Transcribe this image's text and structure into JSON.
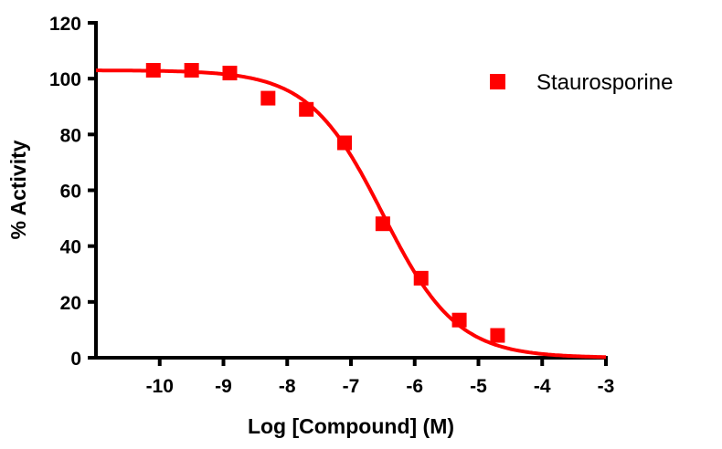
{
  "chart_data": {
    "type": "scatter",
    "title": "",
    "xlabel": "Log [Compound] (M)",
    "ylabel": "% Activity",
    "xlim": [
      -11,
      -3
    ],
    "ylim": [
      0,
      120
    ],
    "xticks": [
      -10,
      -9,
      -8,
      -7,
      -6,
      -5,
      -4,
      -3
    ],
    "yticks": [
      0,
      20,
      40,
      60,
      80,
      100,
      120
    ],
    "grid": false,
    "legend_position": "top-right",
    "series": [
      {
        "name": "Staurosporine",
        "color": "#ff0000",
        "marker": "square",
        "x": [
          -10.1,
          -9.5,
          -8.9,
          -8.3,
          -7.7,
          -7.1,
          -6.5,
          -5.9,
          -5.3,
          -4.7
        ],
        "y": [
          103,
          103,
          102,
          93,
          89,
          77,
          48,
          28.5,
          13.5,
          8
        ],
        "fit": {
          "model": "sigmoidal dose-response",
          "top": 103,
          "bottom": 0,
          "log_ic50": -6.5,
          "hill_slope": -0.75
        }
      }
    ]
  }
}
